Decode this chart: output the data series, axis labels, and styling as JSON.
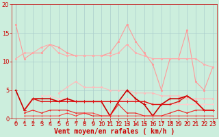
{
  "background_color": "#cceedd",
  "grid_color": "#aacccc",
  "xlabel": "Vent moyen/en rafales ( km/h )",
  "xlim": [
    -0.5,
    23.5
  ],
  "ylim": [
    0,
    20
  ],
  "xticks": [
    0,
    1,
    2,
    3,
    4,
    5,
    6,
    7,
    8,
    9,
    10,
    11,
    12,
    13,
    14,
    15,
    16,
    17,
    18,
    19,
    20,
    21,
    22,
    23
  ],
  "yticks": [
    0,
    5,
    10,
    15,
    20
  ],
  "hours": [
    0,
    1,
    2,
    3,
    4,
    5,
    6,
    7,
    8,
    9,
    10,
    11,
    12,
    13,
    14,
    15,
    16,
    17,
    18,
    19,
    20,
    21,
    22,
    23
  ],
  "series": [
    {
      "name": "rafales_top",
      "color": "#ff9999",
      "linewidth": 0.8,
      "marker": "o",
      "markersize": 1.5,
      "values": [
        16.5,
        10.5,
        11.5,
        11.5,
        13.0,
        12.5,
        11.5,
        11.0,
        11.0,
        11.0,
        11.0,
        11.5,
        13.5,
        16.5,
        13.5,
        11.5,
        9.5,
        5.0,
        10.5,
        10.5,
        15.5,
        6.5,
        5.0,
        9.0
      ]
    },
    {
      "name": "rafales_mid_upper",
      "color": "#ffaaaa",
      "linewidth": 0.8,
      "marker": "o",
      "markersize": 1.5,
      "values": [
        10.5,
        11.5,
        11.5,
        12.5,
        13.0,
        11.5,
        11.0,
        11.0,
        11.0,
        11.0,
        11.0,
        11.0,
        11.5,
        13.0,
        11.5,
        11.0,
        10.5,
        10.5,
        10.5,
        10.5,
        10.5,
        10.5,
        9.5,
        9.0
      ]
    },
    {
      "name": "rafales_mid",
      "color": "#ffbbbb",
      "linewidth": 0.8,
      "marker": "o",
      "markersize": 1.5,
      "values": [
        null,
        null,
        null,
        null,
        null,
        4.5,
        5.5,
        6.5,
        5.5,
        5.5,
        5.5,
        5.0,
        5.0,
        5.0,
        4.5,
        4.5,
        4.5,
        4.0,
        4.0,
        4.0,
        3.5,
        3.5,
        3.5,
        3.5
      ]
    },
    {
      "name": "rafales_lower",
      "color": "#ffcccc",
      "linewidth": 0.8,
      "marker": "o",
      "markersize": 1.5,
      "values": [
        null,
        null,
        null,
        4.0,
        4.0,
        3.5,
        3.5,
        3.0,
        3.0,
        3.0,
        3.0,
        3.0,
        3.0,
        3.5,
        3.0,
        3.0,
        2.5,
        2.5,
        2.5,
        2.5,
        2.5,
        2.5,
        2.5,
        2.5
      ]
    },
    {
      "name": "moyen_1",
      "color": "#cc0000",
      "linewidth": 1.2,
      "marker": "+",
      "markersize": 3,
      "values": [
        5.0,
        1.5,
        3.5,
        3.5,
        3.5,
        3.0,
        3.5,
        3.0,
        3.0,
        3.0,
        3.0,
        0.5,
        3.0,
        5.0,
        3.5,
        2.5,
        0.5,
        2.5,
        3.5,
        3.5,
        4.0,
        3.0,
        1.5,
        1.5
      ]
    },
    {
      "name": "moyen_2",
      "color": "#dd1111",
      "linewidth": 1.0,
      "marker": "+",
      "markersize": 2.5,
      "values": [
        null,
        1.5,
        3.5,
        3.0,
        3.0,
        3.0,
        3.0,
        3.0,
        3.0,
        3.0,
        3.0,
        3.0,
        3.0,
        3.0,
        3.0,
        3.0,
        2.5,
        2.5,
        2.5,
        3.0,
        4.0,
        3.0,
        1.5,
        1.5
      ]
    },
    {
      "name": "moyen_3",
      "color": "#ee2222",
      "linewidth": 0.8,
      "marker": "+",
      "markersize": 2,
      "values": [
        null,
        1.0,
        1.5,
        1.0,
        1.5,
        1.5,
        1.5,
        1.0,
        1.0,
        0.5,
        0.5,
        0.5,
        2.5,
        1.0,
        1.0,
        0.5,
        0.5,
        0.5,
        1.0,
        1.5,
        1.0,
        1.5,
        1.5,
        1.5
      ]
    },
    {
      "name": "moyen_4",
      "color": "#ff3333",
      "linewidth": 0.7,
      "marker": "+",
      "markersize": 1.5,
      "values": [
        null,
        0.5,
        0.5,
        0.5,
        0.5,
        0.5,
        1.0,
        0.5,
        1.0,
        1.0,
        0.5,
        0.5,
        0.5,
        0.5,
        0.5,
        0.5,
        0.5,
        0.5,
        0.5,
        0.5,
        0.5,
        0.5,
        0.5,
        0.5
      ]
    }
  ],
  "xlabel_color": "#cc0000",
  "tick_color": "#cc0000",
  "xlabel_fontsize": 7,
  "tick_fontsize": 6,
  "wind_directions": [
    2,
    2,
    2,
    2,
    2,
    2,
    2,
    2,
    2,
    2,
    2,
    2,
    2,
    1,
    0,
    1,
    2,
    3,
    3,
    2,
    2,
    2,
    2,
    3
  ]
}
